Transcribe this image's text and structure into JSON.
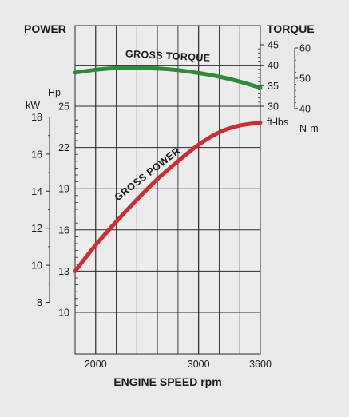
{
  "chart_data": {
    "type": "line",
    "title": "",
    "xlabel": "ENGINE SPEED rpm",
    "xlim": [
      1800,
      3600
    ],
    "xticks": [
      2000,
      3000,
      3600
    ],
    "power": {
      "label": "POWER",
      "kw_label": "kW",
      "kw_ticks": [
        8,
        10,
        12,
        14,
        16,
        18
      ],
      "hp_label": "Hp",
      "hp_ticks": [
        10,
        13,
        16,
        19,
        22,
        25
      ]
    },
    "torque": {
      "label": "TORQUE",
      "ftlbs_label": "ft-lbs",
      "ftlbs_ticks": [
        30,
        35,
        40,
        45
      ],
      "nm_label": "N-m",
      "nm_ticks": [
        40,
        50,
        60
      ]
    },
    "series": [
      {
        "name": "GROSS TORQUE",
        "color": "#2e8b3a",
        "unit": "ft-lbs",
        "x": [
          1800,
          2000,
          2200,
          2400,
          2600,
          2800,
          3000,
          3200,
          3400,
          3600
        ],
        "y": [
          38.2,
          38.9,
          39.3,
          39.4,
          39.2,
          38.8,
          38.1,
          37.2,
          36.0,
          34.5
        ]
      },
      {
        "name": "GROSS POWER",
        "color": "#d22b33",
        "unit": "Hp",
        "x": [
          1800,
          2000,
          2200,
          2400,
          2600,
          2800,
          3000,
          3200,
          3400,
          3600
        ],
        "y": [
          13.0,
          14.9,
          16.6,
          18.2,
          19.7,
          21.0,
          22.2,
          23.1,
          23.6,
          23.8
        ]
      }
    ],
    "grid": true
  }
}
